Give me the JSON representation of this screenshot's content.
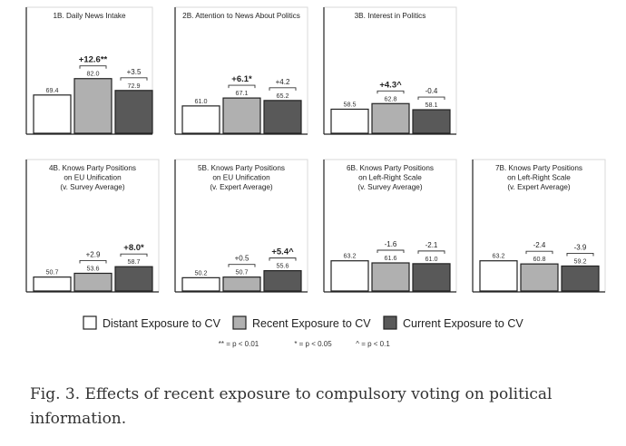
{
  "chart_data": [
    {
      "type": "bar",
      "title": "1B. Daily News Intake",
      "values": [
        69.4,
        82.0,
        72.9
      ],
      "diffs": [
        "+12.6**",
        "+3.5"
      ],
      "diff_bold": [
        true,
        false
      ]
    },
    {
      "type": "bar",
      "title": "2B. Attention to News About Politics",
      "values": [
        61.0,
        67.1,
        65.2
      ],
      "diffs": [
        "+6.1*",
        "+4.2"
      ],
      "diff_bold": [
        true,
        false
      ]
    },
    {
      "type": "bar",
      "title": "3B. Interest in Politics",
      "values": [
        58.5,
        62.8,
        58.1
      ],
      "diffs": [
        "+4.3^",
        "-0.4"
      ],
      "diff_bold": [
        true,
        false
      ]
    },
    {
      "type": "bar",
      "title": "4B. Knows Party Positions\non EU Unification\n(v. Survey Average)",
      "values": [
        50.7,
        53.6,
        58.7
      ],
      "diffs": [
        "+2.9",
        "+8.0*"
      ],
      "diff_bold": [
        false,
        true
      ]
    },
    {
      "type": "bar",
      "title": "5B. Knows Party Positions\non EU Unification\n(v. Expert Average)",
      "values": [
        50.2,
        50.7,
        55.6
      ],
      "diffs": [
        "+0.5",
        "+5.4^"
      ],
      "diff_bold": [
        false,
        true
      ]
    },
    {
      "type": "bar",
      "title": "6B. Knows Party Positions\non Left-Right Scale\n(v. Survey Average)",
      "values": [
        63.2,
        61.6,
        61.0
      ],
      "diffs": [
        "-1.6",
        "-2.1"
      ],
      "diff_bold": [
        false,
        false
      ]
    },
    {
      "type": "bar",
      "title": "7B. Knows Party Positions\non Left-Right Scale\n(v. Expert Average)",
      "values": [
        63.2,
        60.8,
        59.2
      ],
      "diffs": [
        "-2.4",
        "-3.9"
      ],
      "diff_bold": [
        false,
        false
      ]
    }
  ],
  "legend": {
    "items": [
      {
        "label": "Distant Exposure to CV",
        "color": "#ffffff"
      },
      {
        "label": "Recent Exposure to CV",
        "color": "#b0b0b0"
      },
      {
        "label": "Current Exposure to CV",
        "color": "#595959"
      }
    ],
    "significance": [
      "** = p < 0.01",
      "* = p < 0.05",
      "^ = p < 0.1"
    ]
  },
  "caption": "Fig. 3. Effects of recent exposure to compulsory voting on political information."
}
